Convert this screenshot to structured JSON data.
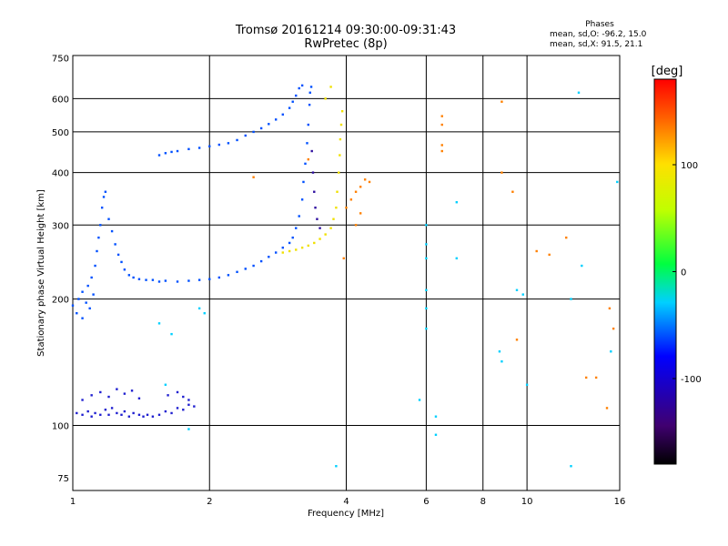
{
  "header": {
    "title_line1": "Tromsø 20161214 09:30:00-09:31:43",
    "title_line2": "RwPretec (8p)"
  },
  "phases_box": {
    "heading": "Phases",
    "line_o": "mean, sd,O: -96.2, 15.0",
    "line_x": "mean, sd,X:  91.5, 21.1"
  },
  "colorbar": {
    "label": "[deg]",
    "range": [
      -180,
      180
    ],
    "ticks": [
      "100",
      "0",
      "-100"
    ]
  },
  "chart_data": {
    "type": "scatter",
    "xlabel": "Frequency [MHz]",
    "ylabel": "Stationary phase Virtual Height [km]",
    "xscale": "log",
    "yscale": "log",
    "xlim": [
      1,
      16
    ],
    "ylim": [
      70,
      760
    ],
    "x_ticks": [
      "1",
      "2",
      "4",
      "6",
      "8",
      "10",
      "16"
    ],
    "y_ticks": [
      "75",
      "100",
      "200",
      "300",
      "400",
      "500",
      "600",
      "750"
    ],
    "grid": true,
    "colors": {
      "deep_blue": "#2020d0",
      "blue": "#0050ff",
      "indigo": "#3010a0",
      "yellow": "#f0e000",
      "orange": "#ff8000",
      "cyan": "#00d0ff"
    },
    "series": [
      {
        "values": [
          [
            1.02,
            107
          ],
          [
            1.05,
            106
          ],
          [
            1.08,
            108
          ],
          [
            1.1,
            105
          ],
          [
            1.12,
            107
          ],
          [
            1.15,
            106
          ],
          [
            1.18,
            109
          ],
          [
            1.2,
            106
          ],
          [
            1.22,
            110
          ],
          [
            1.25,
            107
          ],
          [
            1.28,
            106
          ],
          [
            1.3,
            108
          ],
          [
            1.33,
            105
          ],
          [
            1.36,
            107
          ],
          [
            1.4,
            106
          ],
          [
            1.43,
            105
          ],
          [
            1.46,
            106
          ],
          [
            1.5,
            105
          ],
          [
            1.55,
            106
          ],
          [
            1.6,
            108
          ],
          [
            1.65,
            107
          ],
          [
            1.7,
            110
          ],
          [
            1.75,
            109
          ],
          [
            1.8,
            112
          ],
          [
            1.85,
            111
          ],
          [
            1.05,
            115
          ],
          [
            1.1,
            118
          ],
          [
            1.15,
            120
          ],
          [
            1.2,
            117
          ],
          [
            1.25,
            122
          ],
          [
            1.3,
            119
          ],
          [
            1.35,
            121
          ],
          [
            1.4,
            116
          ],
          [
            1.62,
            118
          ],
          [
            1.7,
            120
          ],
          [
            1.75,
            117
          ],
          [
            1.8,
            115
          ]
        ],
        "color": "deep_blue"
      },
      {
        "values": [
          [
            1.0,
            193
          ],
          [
            1.02,
            185
          ],
          [
            1.03,
            200
          ],
          [
            1.05,
            180
          ],
          [
            1.05,
            208
          ],
          [
            1.07,
            196
          ],
          [
            1.08,
            215
          ],
          [
            1.09,
            190
          ],
          [
            1.1,
            225
          ],
          [
            1.11,
            205
          ],
          [
            1.12,
            240
          ],
          [
            1.13,
            260
          ],
          [
            1.14,
            280
          ],
          [
            1.15,
            300
          ],
          [
            1.16,
            330
          ],
          [
            1.17,
            350
          ],
          [
            1.18,
            360
          ],
          [
            1.2,
            310
          ],
          [
            1.22,
            290
          ],
          [
            1.24,
            270
          ],
          [
            1.26,
            255
          ],
          [
            1.28,
            245
          ],
          [
            1.3,
            235
          ],
          [
            1.33,
            228
          ],
          [
            1.36,
            225
          ],
          [
            1.4,
            223
          ],
          [
            1.45,
            222
          ],
          [
            1.5,
            222
          ],
          [
            1.55,
            220
          ],
          [
            1.6,
            221
          ],
          [
            1.7,
            220
          ],
          [
            1.8,
            221
          ],
          [
            1.9,
            222
          ],
          [
            2.0,
            223
          ],
          [
            2.1,
            225
          ],
          [
            2.2,
            228
          ],
          [
            2.3,
            232
          ],
          [
            2.4,
            236
          ],
          [
            2.5,
            240
          ],
          [
            2.6,
            246
          ],
          [
            2.7,
            252
          ],
          [
            2.8,
            258
          ],
          [
            2.9,
            265
          ],
          [
            3.0,
            272
          ],
          [
            3.05,
            280
          ],
          [
            3.1,
            295
          ],
          [
            3.15,
            315
          ],
          [
            3.2,
            345
          ],
          [
            3.22,
            380
          ],
          [
            3.25,
            420
          ],
          [
            3.28,
            470
          ],
          [
            3.3,
            520
          ],
          [
            3.32,
            580
          ],
          [
            3.33,
            620
          ],
          [
            3.35,
            640
          ]
        ],
        "color": "blue"
      },
      {
        "values": [
          [
            1.55,
            440
          ],
          [
            1.6,
            445
          ],
          [
            1.65,
            448
          ],
          [
            1.7,
            450
          ],
          [
            1.8,
            455
          ],
          [
            1.9,
            458
          ],
          [
            2.0,
            462
          ],
          [
            2.1,
            466
          ],
          [
            2.2,
            470
          ],
          [
            2.3,
            478
          ],
          [
            2.4,
            490
          ],
          [
            2.5,
            500
          ],
          [
            2.6,
            510
          ],
          [
            2.7,
            522
          ],
          [
            2.8,
            535
          ],
          [
            2.9,
            550
          ],
          [
            3.0,
            570
          ],
          [
            3.05,
            590
          ],
          [
            3.1,
            610
          ],
          [
            3.15,
            635
          ],
          [
            3.2,
            645
          ]
        ],
        "color": "blue"
      },
      {
        "values": [
          [
            3.36,
            450
          ],
          [
            3.38,
            400
          ],
          [
            3.4,
            360
          ],
          [
            3.42,
            330
          ],
          [
            3.45,
            310
          ],
          [
            3.5,
            295
          ]
        ],
        "color": "indigo"
      },
      {
        "values": [
          [
            2.9,
            258
          ],
          [
            3.0,
            260
          ],
          [
            3.1,
            262
          ],
          [
            3.2,
            265
          ],
          [
            3.3,
            268
          ],
          [
            3.4,
            272
          ],
          [
            3.5,
            278
          ],
          [
            3.6,
            285
          ],
          [
            3.7,
            295
          ],
          [
            3.75,
            310
          ],
          [
            3.8,
            330
          ],
          [
            3.82,
            360
          ],
          [
            3.85,
            400
          ],
          [
            3.87,
            440
          ],
          [
            3.88,
            480
          ],
          [
            3.9,
            520
          ],
          [
            3.92,
            560
          ],
          [
            3.6,
            600
          ],
          [
            3.7,
            640
          ]
        ],
        "color": "yellow"
      },
      {
        "values": [
          [
            4.0,
            330
          ],
          [
            4.1,
            345
          ],
          [
            4.2,
            360
          ],
          [
            4.3,
            370
          ],
          [
            4.4,
            385
          ],
          [
            4.3,
            320
          ],
          [
            4.2,
            300
          ],
          [
            4.5,
            380
          ],
          [
            3.95,
            250
          ]
        ],
        "color": "orange"
      },
      {
        "values": [
          [
            6.5,
            545
          ],
          [
            6.5,
            520
          ],
          [
            6.5,
            465
          ],
          [
            6.5,
            450
          ],
          [
            8.8,
            590
          ],
          [
            8.8,
            400
          ],
          [
            9.3,
            360
          ],
          [
            10.5,
            260
          ],
          [
            11.2,
            255
          ],
          [
            15.2,
            190
          ],
          [
            15.5,
            170
          ],
          [
            14.2,
            130
          ],
          [
            15.0,
            110
          ],
          [
            12.2,
            280
          ],
          [
            13.5,
            130
          ],
          [
            9.5,
            160
          ],
          [
            3.3,
            430
          ],
          [
            2.5,
            390
          ]
        ],
        "color": "orange"
      },
      {
        "values": [
          [
            6.0,
            300
          ],
          [
            6.0,
            270
          ],
          [
            6.0,
            250
          ],
          [
            6.0,
            210
          ],
          [
            6.0,
            190
          ],
          [
            6.0,
            170
          ],
          [
            5.8,
            115
          ],
          [
            6.3,
            105
          ],
          [
            7.0,
            340
          ],
          [
            7.0,
            250
          ],
          [
            9.5,
            210
          ],
          [
            9.8,
            205
          ],
          [
            12.5,
            200
          ],
          [
            13.0,
            620
          ],
          [
            13.2,
            240
          ],
          [
            15.3,
            150
          ],
          [
            15.8,
            380
          ],
          [
            8.7,
            150
          ],
          [
            8.8,
            142
          ],
          [
            10.0,
            125
          ],
          [
            12.5,
            80
          ],
          [
            3.8,
            80
          ],
          [
            6.3,
            95
          ],
          [
            1.8,
            98
          ],
          [
            1.9,
            190
          ],
          [
            1.95,
            185
          ],
          [
            1.55,
            175
          ],
          [
            1.6,
            125
          ],
          [
            1.65,
            165
          ]
        ],
        "color": "cyan"
      }
    ]
  }
}
